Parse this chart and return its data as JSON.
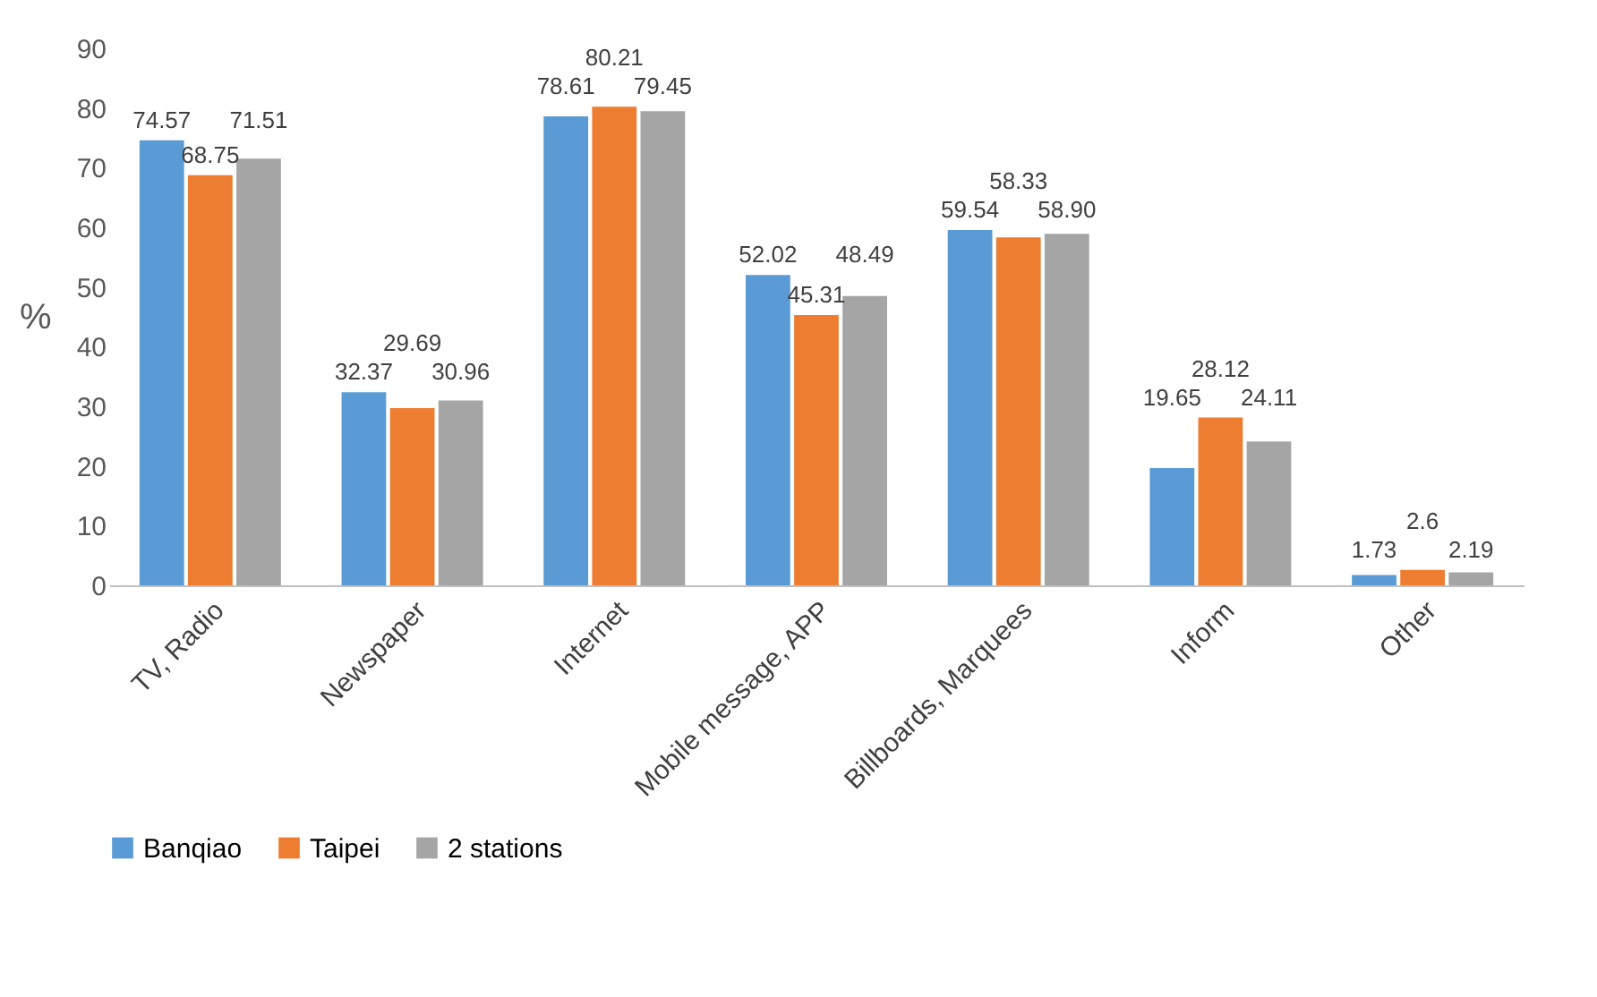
{
  "chart_data": {
    "type": "bar",
    "ylabel": "%",
    "categories": [
      "TV, Radio",
      "Newspaper",
      "Internet",
      "Mobile message, APP",
      "Billboards, Marquees",
      "Inform",
      "Other"
    ],
    "series": [
      {
        "name": "Banqiao",
        "color": "#5b9bd5",
        "values": [
          74.57,
          32.37,
          78.61,
          52.02,
          59.54,
          19.65,
          1.73
        ],
        "value_labels": [
          "74.57",
          "32.37",
          "78.61",
          "52.02",
          "59.54",
          "19.65",
          "1.73"
        ]
      },
      {
        "name": "Taipei",
        "color": "#ed7d31",
        "values": [
          68.75,
          29.69,
          80.21,
          45.31,
          58.33,
          28.12,
          2.6
        ],
        "value_labels": [
          "68.75",
          "29.69",
          "80.21",
          "45.31",
          "58.33",
          "28.12",
          "2.6"
        ]
      },
      {
        "name": "2 stations",
        "color": "#a5a5a5",
        "values": [
          71.51,
          30.96,
          79.45,
          48.49,
          58.9,
          24.11,
          2.19
        ],
        "value_labels": [
          "71.51",
          "30.96",
          "79.45",
          "48.49",
          "58.90",
          "24.11",
          "2.19"
        ]
      }
    ],
    "ylim": [
      0,
      90
    ],
    "yticks": [
      0,
      10,
      20,
      30,
      40,
      50,
      60,
      70,
      80,
      90
    ],
    "grid": false,
    "legend": "bottom"
  }
}
